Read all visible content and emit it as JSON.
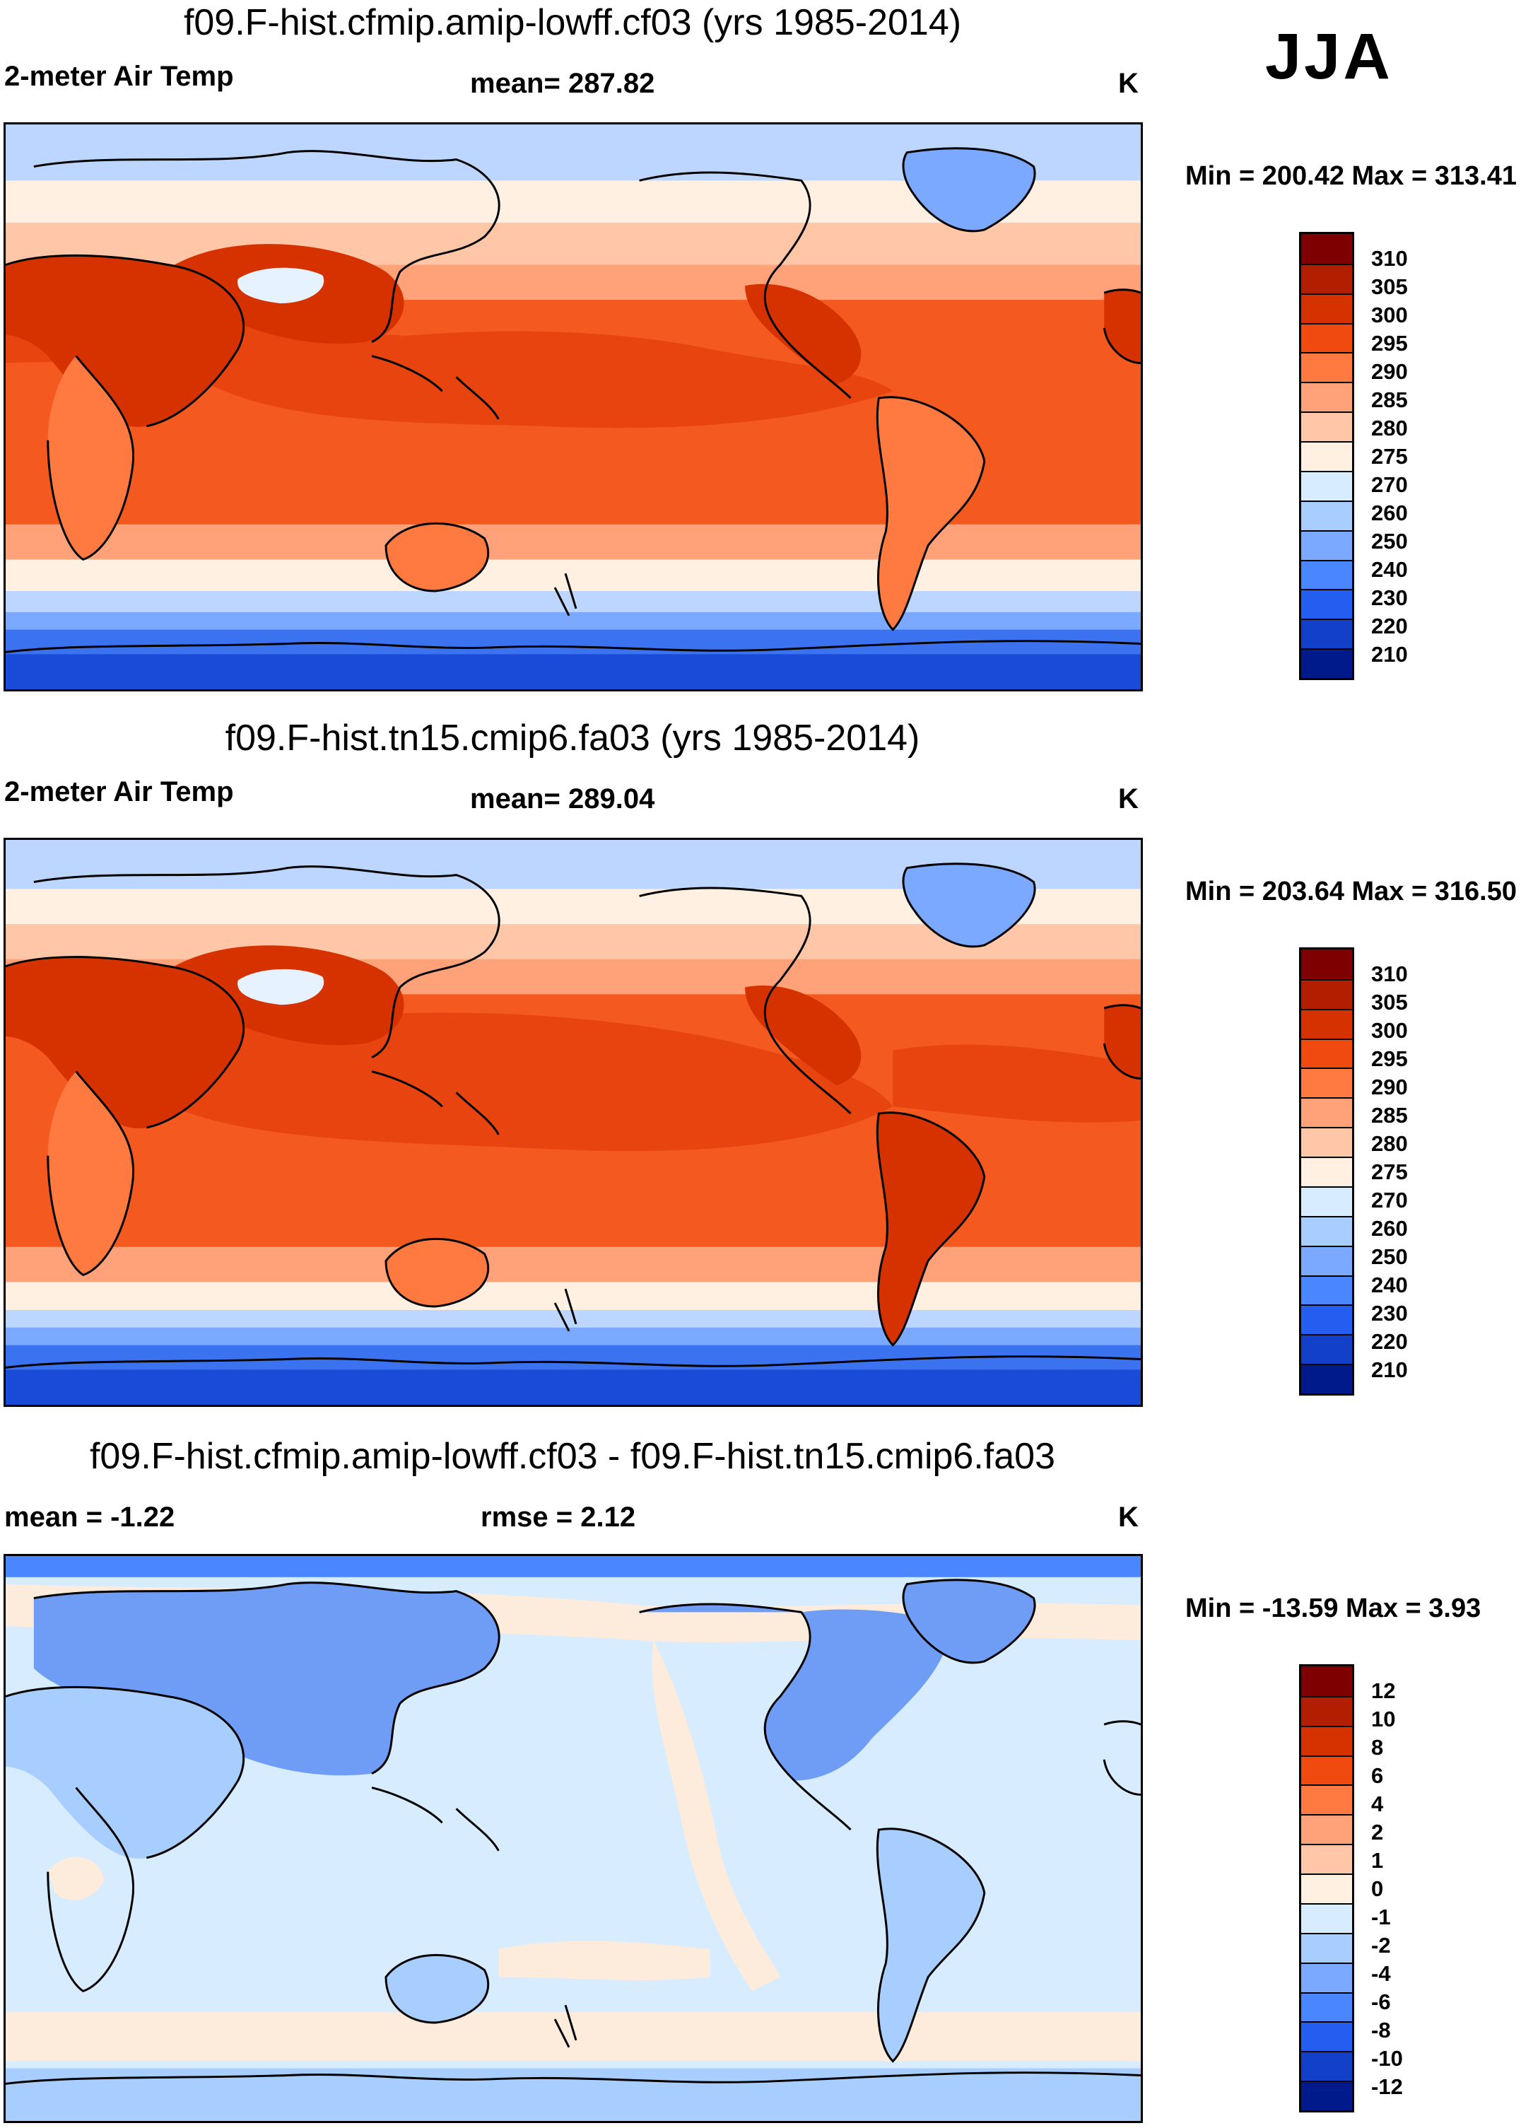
{
  "season": "JJA",
  "panels": [
    {
      "title": "f09.F-hist.cfmip.amip-lowff.cf03 (yrs 1985-2014)",
      "left_label": "2-meter Air Temp",
      "center_label": "mean= 287.82",
      "unit": "K",
      "minmax": "Min = 200.42 Max = 313.41",
      "colorbar": {
        "levels": [
          "310",
          "305",
          "300",
          "295",
          "290",
          "285",
          "280",
          "275",
          "270",
          "260",
          "250",
          "240",
          "230",
          "220",
          "210"
        ],
        "colors": [
          "#7e0000",
          "#b21f00",
          "#d63200",
          "#f04a10",
          "#ff7a40",
          "#ffa27a",
          "#ffc6a8",
          "#fff0e2",
          "#d8ecff",
          "#a8cdff",
          "#7aa9ff",
          "#4a86ff",
          "#245ef0",
          "#1240c8",
          "#001a8c"
        ]
      }
    },
    {
      "title": "f09.F-hist.tn15.cmip6.fa03 (yrs 1985-2014)",
      "left_label": "2-meter Air Temp",
      "center_label": "mean= 289.04",
      "unit": "K",
      "minmax": "Min = 203.64 Max = 316.50",
      "colorbar": {
        "levels": [
          "310",
          "305",
          "300",
          "295",
          "290",
          "285",
          "280",
          "275",
          "270",
          "260",
          "250",
          "240",
          "230",
          "220",
          "210"
        ],
        "colors": [
          "#7e0000",
          "#b21f00",
          "#d63200",
          "#f04a10",
          "#ff7a40",
          "#ffa27a",
          "#ffc6a8",
          "#fff0e2",
          "#d8ecff",
          "#a8cdff",
          "#7aa9ff",
          "#4a86ff",
          "#245ef0",
          "#1240c8",
          "#001a8c"
        ]
      }
    },
    {
      "title": "f09.F-hist.cfmip.amip-lowff.cf03 - f09.F-hist.tn15.cmip6.fa03",
      "left_label": "mean =  -1.22",
      "center_label": "rmse =   2.12",
      "unit": "K",
      "minmax": "Min = -13.59 Max =   3.93",
      "colorbar": {
        "levels": [
          "12",
          "10",
          "8",
          "6",
          "4",
          "2",
          "1",
          "0",
          "-1",
          "-2",
          "-4",
          "-6",
          "-8",
          "-10",
          "-12"
        ],
        "colors": [
          "#7e0000",
          "#b21f00",
          "#d63200",
          "#f04a10",
          "#ff7a40",
          "#ffa27a",
          "#ffc6a8",
          "#fff0e2",
          "#d8ecff",
          "#a8cdff",
          "#7aa9ff",
          "#4a86ff",
          "#245ef0",
          "#1240c8",
          "#001a8c"
        ]
      }
    }
  ],
  "map_fills": {
    "abs": {
      "polar_north": "#bcd6ff",
      "subpolar_north": "#fff0e2",
      "mid_north": "#ffc6a8",
      "subtropic_north": "#ffa27a",
      "tropics": "#f45a20",
      "warm_pool": "#e84410",
      "subtropic_south": "#ffa27a",
      "mid_south": "#fff0e2",
      "southern_ocean_1": "#bcd6ff",
      "southern_ocean_2": "#7aa9ff",
      "antarctic_1": "#3a72f0",
      "antarctic_2": "#1a4ad8",
      "land_hot": "#d63200",
      "land_warm": "#ff7a40",
      "tibet": "#e6f2ff",
      "greenland": "#7aa9ff"
    },
    "diff": {
      "ocean": "#d8ecff",
      "ocean_warm": "#fdebdc",
      "land_cool": "#a8cdff",
      "land_cold": "#6f9cf5",
      "arctic": "#4a86ff",
      "antarctic": "#a8cdff"
    }
  }
}
